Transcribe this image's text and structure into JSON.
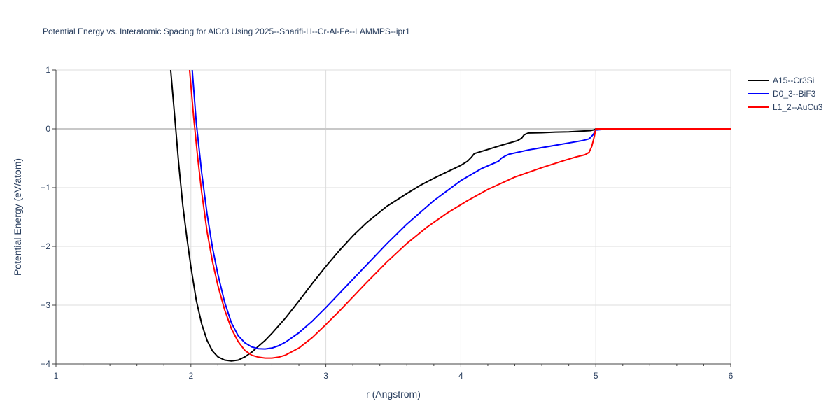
{
  "chart_data": {
    "type": "line",
    "title": "Potential Energy vs. Interatomic Spacing for AlCr3 Using 2025--Sharifi-H--Cr-Al-Fe--LAMMPS--ipr1",
    "xlabel": "r (Angstrom)",
    "ylabel": "Potential Energy (eV/atom)",
    "xlim": [
      1,
      6
    ],
    "ylim": [
      -4,
      1
    ],
    "xticks": [
      1,
      2,
      3,
      4,
      5,
      6
    ],
    "xtick_labels": [
      "1",
      "2",
      "3",
      "4",
      "5",
      "6"
    ],
    "yticks": [
      -4,
      -3,
      -2,
      -1,
      0,
      1
    ],
    "ytick_labels": [
      "−4",
      "−3",
      "−2",
      "−1",
      "0",
      "1"
    ],
    "grid": true,
    "legend_position": "top-right",
    "series": [
      {
        "name": "A15--Cr3Si",
        "color": "#000000",
        "x": [
          1.85,
          1.88,
          1.91,
          1.94,
          1.97,
          2.0,
          2.04,
          2.08,
          2.12,
          2.16,
          2.2,
          2.25,
          2.3,
          2.35,
          2.4,
          2.45,
          2.5,
          2.55,
          2.6,
          2.7,
          2.8,
          2.9,
          3.0,
          3.1,
          3.2,
          3.3,
          3.45,
          3.6,
          3.7,
          3.8,
          3.9,
          4.0,
          4.05,
          4.08,
          4.1,
          4.2,
          4.3,
          4.42,
          4.45,
          4.47,
          4.5,
          4.6,
          4.7,
          4.8,
          4.96,
          4.99,
          5.0,
          5.1,
          5.5,
          6.0
        ],
        "y": [
          1.0,
          0.2,
          -0.6,
          -1.3,
          -1.85,
          -2.35,
          -2.92,
          -3.32,
          -3.6,
          -3.78,
          -3.88,
          -3.935,
          -3.95,
          -3.935,
          -3.88,
          -3.8,
          -3.7,
          -3.6,
          -3.48,
          -3.22,
          -2.93,
          -2.63,
          -2.34,
          -2.07,
          -1.82,
          -1.6,
          -1.32,
          -1.1,
          -0.96,
          -0.84,
          -0.73,
          -0.62,
          -0.55,
          -0.48,
          -0.42,
          -0.35,
          -0.28,
          -0.2,
          -0.16,
          -0.1,
          -0.07,
          -0.065,
          -0.055,
          -0.05,
          -0.03,
          -0.015,
          0.0,
          0.0,
          0.0,
          0.0
        ]
      },
      {
        "name": "D0_3--BiF3",
        "color": "#0000ff",
        "x": [
          2.01,
          2.04,
          2.08,
          2.12,
          2.16,
          2.2,
          2.25,
          2.3,
          2.35,
          2.4,
          2.45,
          2.5,
          2.55,
          2.6,
          2.65,
          2.7,
          2.8,
          2.9,
          3.0,
          3.1,
          3.2,
          3.3,
          3.45,
          3.6,
          3.8,
          4.0,
          4.15,
          4.28,
          4.3,
          4.33,
          4.36,
          4.5,
          4.7,
          4.9,
          4.95,
          4.98,
          5.0,
          5.1,
          5.5,
          6.0
        ],
        "y": [
          1.0,
          0.1,
          -0.75,
          -1.45,
          -2.02,
          -2.48,
          -2.95,
          -3.3,
          -3.52,
          -3.64,
          -3.71,
          -3.74,
          -3.745,
          -3.73,
          -3.69,
          -3.63,
          -3.47,
          -3.27,
          -3.04,
          -2.8,
          -2.56,
          -2.32,
          -1.96,
          -1.62,
          -1.22,
          -0.88,
          -0.68,
          -0.55,
          -0.5,
          -0.46,
          -0.43,
          -0.36,
          -0.28,
          -0.2,
          -0.17,
          -0.1,
          -0.02,
          0.0,
          0.0,
          0.0
        ]
      },
      {
        "name": "L1_2--AuCu3",
        "color": "#ff0000",
        "x": [
          1.99,
          2.02,
          2.05,
          2.08,
          2.12,
          2.16,
          2.2,
          2.25,
          2.3,
          2.35,
          2.4,
          2.45,
          2.5,
          2.55,
          2.6,
          2.65,
          2.7,
          2.8,
          2.9,
          3.0,
          3.1,
          3.2,
          3.3,
          3.45,
          3.6,
          3.75,
          3.9,
          4.05,
          4.2,
          4.4,
          4.6,
          4.75,
          4.85,
          4.92,
          4.95,
          4.97,
          4.99,
          5.0,
          5.1,
          5.5,
          6.0
        ],
        "y": [
          1.0,
          0.2,
          -0.48,
          -1.08,
          -1.75,
          -2.26,
          -2.67,
          -3.08,
          -3.4,
          -3.62,
          -3.77,
          -3.85,
          -3.885,
          -3.9,
          -3.9,
          -3.885,
          -3.85,
          -3.73,
          -3.55,
          -3.33,
          -3.1,
          -2.86,
          -2.62,
          -2.27,
          -1.95,
          -1.67,
          -1.43,
          -1.22,
          -1.03,
          -0.82,
          -0.66,
          -0.55,
          -0.48,
          -0.44,
          -0.4,
          -0.3,
          -0.12,
          0.0,
          0.0,
          0.0,
          0.0
        ]
      }
    ]
  }
}
